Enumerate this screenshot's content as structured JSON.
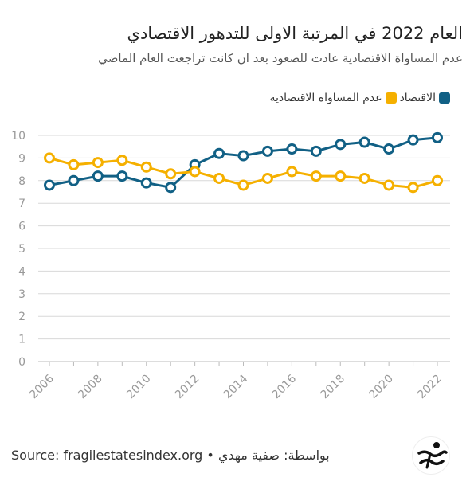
{
  "header": {
    "title": "العام 2022 في المرتبة الاولى للتدهور الاقتصادي",
    "subtitle": "عدم المساواة الاقتصادية عادت للصعود بعد ان كانت تراجعت العام الماضي"
  },
  "colors": {
    "economy": "#116085",
    "inequality": "#f5b000",
    "grid": "#d8d8d8",
    "axis_text": "#999999"
  },
  "chart_data": {
    "type": "line",
    "x": [
      2006,
      2007,
      2008,
      2009,
      2010,
      2011,
      2012,
      2013,
      2014,
      2015,
      2016,
      2017,
      2018,
      2019,
      2020,
      2021,
      2022
    ],
    "x_tick_labels": [
      "2006",
      "2008",
      "2010",
      "2012",
      "2014",
      "2016",
      "2018",
      "2020",
      "2022"
    ],
    "y_tick_labels": [
      "0",
      "1",
      "2",
      "3",
      "4",
      "5",
      "6",
      "7",
      "8",
      "9",
      "10"
    ],
    "ylim": [
      0,
      10
    ],
    "xlim": [
      2006,
      2022
    ],
    "grid": true,
    "legend_position": "top-right",
    "series": [
      {
        "name": "الاقتصاد",
        "color": "#116085",
        "values": [
          7.8,
          8.0,
          8.2,
          8.2,
          7.9,
          7.7,
          8.7,
          9.2,
          9.1,
          9.3,
          9.4,
          9.3,
          9.6,
          9.7,
          9.4,
          9.8,
          9.9
        ]
      },
      {
        "name": "عدم المساواة الاقتصادية",
        "color": "#f5b000",
        "values": [
          9.0,
          8.7,
          8.8,
          8.9,
          8.6,
          8.3,
          8.4,
          8.1,
          7.8,
          8.1,
          8.4,
          8.2,
          8.2,
          8.1,
          7.8,
          7.7,
          8.0
        ]
      }
    ]
  },
  "footer": {
    "source": "Source: fragilestatesindex.org",
    "separator": "•",
    "byline": "بواسطة: صفية مهدي"
  },
  "logo_icon": "brand-logo-icon"
}
